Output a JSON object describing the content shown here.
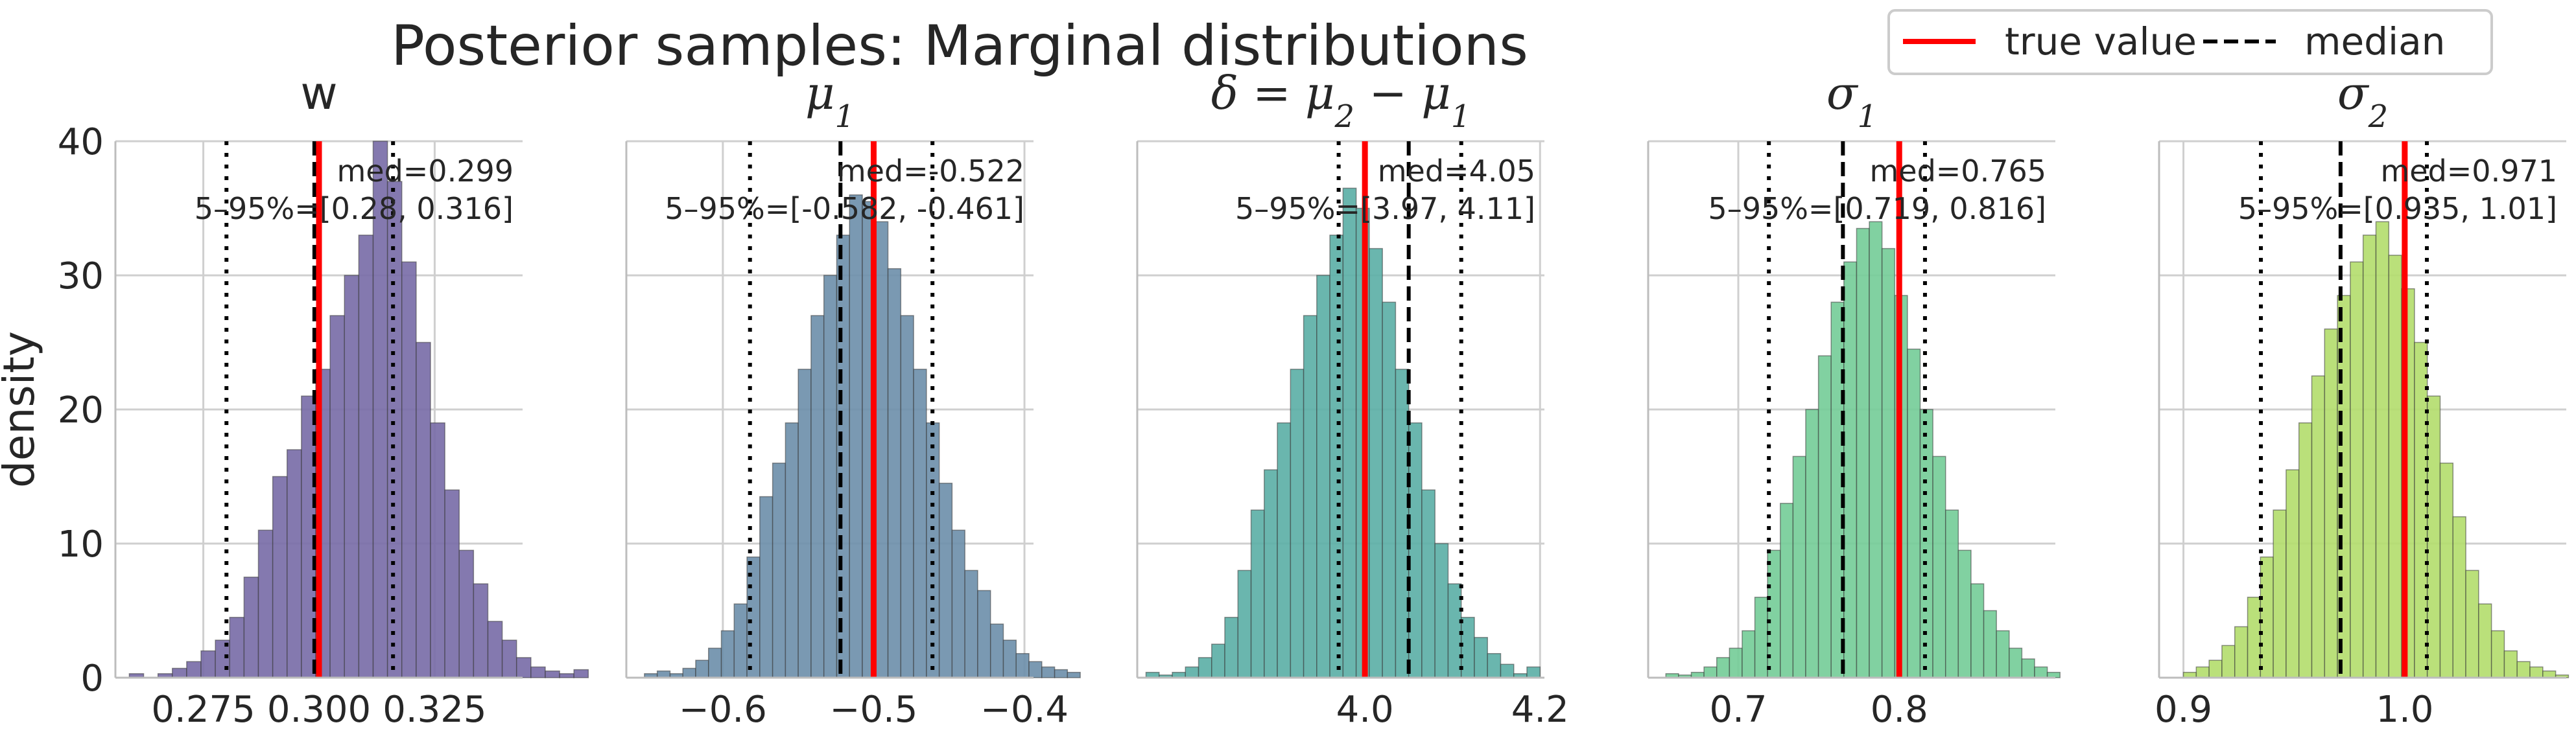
{
  "figure": {
    "suptitle": "Posterior samples: Marginal distributions",
    "ylabel": "density",
    "legend": {
      "placement": "top-right",
      "entries": [
        {
          "label": "true value",
          "color": "#ff0000",
          "style": "solid"
        },
        {
          "label": "median",
          "color": "#000000",
          "style": "dashed"
        }
      ]
    }
  },
  "chart_data": [
    {
      "type": "bar",
      "panel_title": "w",
      "title_math": false,
      "color": "#776aa6",
      "xlim": [
        0.256,
        0.344
      ],
      "ylim": [
        0,
        40
      ],
      "xticks": [
        0.275,
        0.3,
        0.325
      ],
      "xtick_labels": [
        "0.275",
        "0.300",
        "0.325"
      ],
      "yticks": [
        0,
        10,
        20,
        30,
        40
      ],
      "ytick_labels": [
        "0",
        "10",
        "20",
        "30",
        "40"
      ],
      "yaxis_labels_shown": true,
      "bin_start": 0.259,
      "bin_width": 0.0031,
      "values": [
        0.3,
        0,
        0.3,
        0.7,
        1.2,
        2.0,
        2.8,
        4.5,
        7.5,
        11.0,
        15.0,
        17.0,
        21.0,
        23.0,
        27.0,
        30.0,
        33.0,
        40.0,
        37.0,
        31.0,
        25.0,
        19.0,
        14.0,
        9.5,
        7.0,
        4.2,
        2.8,
        1.5,
        0.8,
        0.5,
        0.3,
        0.6
      ],
      "true_value": 0.3,
      "median": 0.299,
      "q05": 0.28,
      "q95": 0.316,
      "annotation": {
        "med": "med=0.299",
        "ci": "5–95%=[0.28, 0.316]"
      }
    },
    {
      "type": "bar",
      "panel_title": "μ",
      "title_sub": "1",
      "title_math": true,
      "color": "#6b8eaa",
      "xlim": [
        -0.664,
        -0.394
      ],
      "ylim": [
        0,
        40
      ],
      "xticks": [
        -0.6,
        -0.5,
        -0.4
      ],
      "xtick_labels": [
        "−0.6",
        "−0.5",
        "−0.4"
      ],
      "yticks": [
        0,
        10,
        20,
        30,
        40
      ],
      "yaxis_labels_shown": false,
      "bin_start": -0.652,
      "bin_width": 0.0085,
      "values": [
        0.3,
        0.5,
        0.3,
        0.7,
        1.3,
        2.2,
        3.5,
        5.5,
        9.0,
        13.5,
        16.0,
        19.0,
        23.0,
        27.0,
        30.0,
        33.0,
        36.0,
        35.5,
        34.0,
        30.5,
        27.0,
        23.0,
        19.0,
        14.5,
        11.0,
        8.0,
        6.5,
        4.0,
        2.8,
        1.8,
        1.2,
        0.8,
        0.6,
        0.4
      ],
      "true_value": -0.5,
      "median": -0.522,
      "q05": -0.582,
      "q95": -0.461,
      "annotation": {
        "med": "med=-0.522",
        "ci": "5–95%=[-0.582, -0.461]"
      }
    },
    {
      "type": "bar",
      "panel_title": "δ = μ",
      "title_full": true,
      "color": "#5aaea5",
      "xlim": [
        3.74,
        4.205
      ],
      "ylim": [
        0,
        40
      ],
      "xticks": [
        4.0,
        4.2
      ],
      "xtick_labels": [
        "4.0",
        "4.2"
      ],
      "yticks": [
        0,
        10,
        20,
        30,
        40
      ],
      "yaxis_labels_shown": false,
      "bin_start": 3.75,
      "bin_width": 0.015,
      "values": [
        0.4,
        0.2,
        0.4,
        0.8,
        1.5,
        2.5,
        4.5,
        8.0,
        12.5,
        15.5,
        19.0,
        23.0,
        27.0,
        30.0,
        33.0,
        36.5,
        35.0,
        32.0,
        28.0,
        23.0,
        19.0,
        14.0,
        10.0,
        7.0,
        4.5,
        3.0,
        1.8,
        1.0,
        0.3,
        0.8
      ],
      "true_value": 4.0,
      "median": 4.05,
      "q05": 3.97,
      "q95": 4.11,
      "annotation": {
        "med": "med=4.05",
        "ci": "5–95%=[3.97, 4.11]"
      }
    },
    {
      "type": "bar",
      "panel_title": "σ",
      "title_sub": "1",
      "title_math": true,
      "color": "#73cc97",
      "xlim": [
        0.644,
        0.897
      ],
      "ylim": [
        0,
        40
      ],
      "xticks": [
        0.7,
        0.8
      ],
      "xtick_labels": [
        "0.7",
        "0.8"
      ],
      "yticks": [
        0,
        10,
        20,
        30,
        40
      ],
      "yaxis_labels_shown": false,
      "bin_start": 0.655,
      "bin_width": 0.0079,
      "values": [
        0.3,
        0.2,
        0.4,
        0.8,
        1.5,
        2.2,
        3.5,
        6.0,
        9.5,
        13.0,
        16.5,
        20.0,
        24.0,
        28.0,
        31.0,
        33.5,
        34.0,
        32.0,
        28.5,
        24.5,
        20.0,
        16.5,
        12.5,
        9.5,
        7.0,
        5.0,
        3.5,
        2.2,
        1.4,
        0.8,
        0.4
      ],
      "true_value": 0.8,
      "median": 0.765,
      "q05": 0.719,
      "q95": 0.816,
      "annotation": {
        "med": "med=0.765",
        "ci": "5–95%=[0.719, 0.816]"
      }
    },
    {
      "type": "bar",
      "panel_title": "σ",
      "title_sub": "2",
      "title_math": true,
      "color": "#b2dd6b",
      "xlim": [
        0.889,
        1.073
      ],
      "ylim": [
        0,
        40
      ],
      "xticks": [
        0.9,
        1.0
      ],
      "xtick_labels": [
        "0.9",
        "1.0"
      ],
      "yticks": [
        0,
        10,
        20,
        30,
        40
      ],
      "yaxis_labels_shown": false,
      "bin_start": 0.9,
      "bin_width": 0.0058,
      "values": [
        0.4,
        0.8,
        1.3,
        2.4,
        3.8,
        6.0,
        9.0,
        12.5,
        15.5,
        19.0,
        22.5,
        26.0,
        28.5,
        31.0,
        33.0,
        34.0,
        31.5,
        29.0,
        25.0,
        21.0,
        16.0,
        12.0,
        8.0,
        5.5,
        3.5,
        2.0,
        1.2,
        0.8,
        0.5,
        0.2
      ],
      "true_value": 1.0,
      "median": 0.971,
      "q05": 0.935,
      "q95": 1.01,
      "annotation": {
        "med": "med=0.971",
        "ci": "5–95%=[0.935, 1.01]"
      }
    }
  ]
}
